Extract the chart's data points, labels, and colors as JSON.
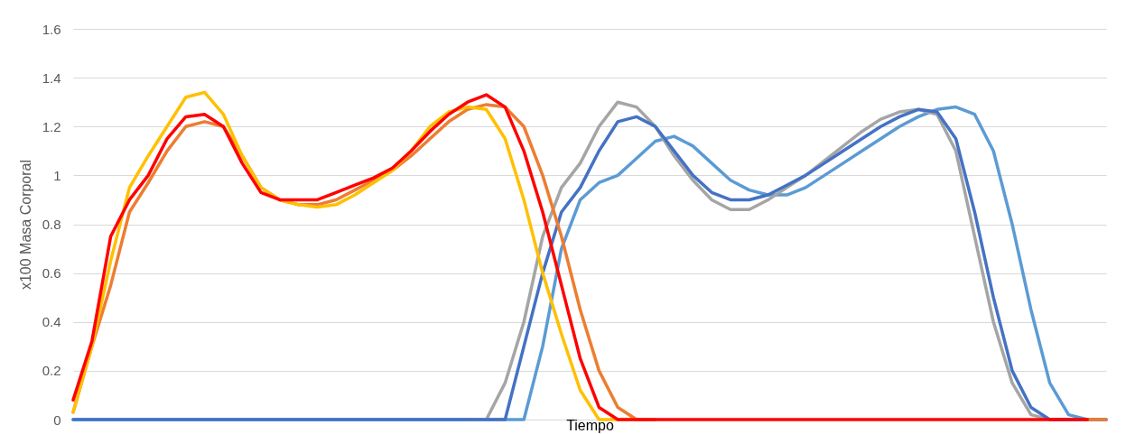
{
  "chart_data": {
    "type": "line",
    "xlabel": "Tiempo",
    "ylabel": "x100 Masa Corporal",
    "categories": [
      null,
      null,
      null,
      null,
      null,
      null,
      null,
      null,
      null,
      null,
      null,
      null,
      null,
      null,
      null,
      null,
      null,
      null,
      null,
      null,
      null,
      null,
      null,
      null,
      null,
      null,
      null,
      null,
      null,
      null,
      null,
      null,
      null,
      null,
      null,
      null,
      null,
      null,
      null,
      null,
      null,
      null,
      null,
      null,
      null,
      null,
      null,
      null,
      null,
      null,
      null,
      null,
      null,
      null,
      null,
      null
    ],
    "ylim": [
      0,
      1.6
    ],
    "yticks": [
      0,
      0.2,
      0.4,
      0.6,
      0.8,
      1,
      1.2,
      1.4,
      1.6
    ],
    "grid": "y",
    "tick_labels": "y",
    "marker": "none",
    "line_style": "solid",
    "series": [
      {
        "color": "#5b9bd5",
        "values": [
          0,
          0,
          0,
          0,
          0,
          0,
          0,
          0,
          0,
          0,
          0,
          0,
          0,
          0,
          0,
          0,
          0,
          0,
          0,
          0,
          0,
          0,
          0,
          0,
          0,
          0.3,
          0.7,
          0.9,
          0.97,
          1.0,
          1.07,
          1.14,
          1.16,
          1.12,
          1.05,
          0.98,
          0.94,
          0.92,
          0.92,
          0.95,
          1.0,
          1.05,
          1.1,
          1.15,
          1.2,
          1.24,
          1.27,
          1.28,
          1.25,
          1.1,
          0.8,
          0.45,
          0.15,
          0.02,
          0,
          0
        ]
      },
      {
        "color": "#a5a5a5",
        "values": [
          null,
          null,
          null,
          null,
          null,
          null,
          null,
          null,
          null,
          null,
          null,
          null,
          null,
          null,
          null,
          null,
          null,
          null,
          null,
          null,
          null,
          0,
          0,
          0.15,
          0.4,
          0.75,
          0.95,
          1.05,
          1.2,
          1.3,
          1.28,
          1.2,
          1.08,
          0.98,
          0.9,
          0.86,
          0.86,
          0.9,
          0.95,
          1.0,
          1.06,
          1.12,
          1.18,
          1.23,
          1.26,
          1.27,
          1.25,
          1.1,
          0.75,
          0.4,
          0.15,
          0.02,
          0,
          0,
          null,
          null
        ]
      },
      {
        "color": "#4472c4",
        "values": [
          0,
          0,
          0,
          0,
          0,
          0,
          0,
          0,
          0,
          0,
          0,
          0,
          0,
          0,
          0,
          0,
          0,
          0,
          0,
          0,
          0,
          0,
          0,
          0,
          0.3,
          0.6,
          0.85,
          0.95,
          1.1,
          1.22,
          1.24,
          1.2,
          1.1,
          1.0,
          0.93,
          0.9,
          0.9,
          0.92,
          0.96,
          1.0,
          1.05,
          1.1,
          1.15,
          1.2,
          1.24,
          1.27,
          1.26,
          1.15,
          0.85,
          0.5,
          0.2,
          0.05,
          0,
          0,
          0,
          0
        ]
      },
      {
        "color": "#ed7d31",
        "values": [
          0.03,
          0.3,
          0.55,
          0.85,
          0.97,
          1.1,
          1.2,
          1.22,
          1.2,
          1.08,
          0.95,
          0.9,
          0.88,
          0.88,
          0.9,
          0.94,
          0.98,
          1.02,
          1.08,
          1.15,
          1.22,
          1.27,
          1.29,
          1.28,
          1.2,
          1.0,
          0.75,
          0.45,
          0.2,
          0.05,
          0,
          0,
          null,
          null,
          null,
          null,
          null,
          null,
          null,
          null,
          null,
          null,
          null,
          null,
          null,
          null,
          null,
          null,
          null,
          null,
          null,
          null,
          null,
          null,
          0,
          0
        ]
      },
      {
        "color": "#ffc000",
        "values": [
          0.03,
          0.3,
          0.65,
          0.95,
          1.08,
          1.2,
          1.32,
          1.34,
          1.25,
          1.08,
          0.95,
          0.9,
          0.88,
          0.87,
          0.88,
          0.92,
          0.97,
          1.02,
          1.1,
          1.2,
          1.26,
          1.28,
          1.27,
          1.15,
          0.9,
          0.6,
          0.35,
          0.12,
          0,
          0,
          0,
          null,
          null,
          null,
          null,
          null,
          null,
          null,
          null,
          null,
          null,
          null,
          null,
          null,
          null,
          null,
          null,
          null,
          null,
          null,
          null,
          null,
          null,
          null,
          null,
          null
        ]
      },
      {
        "color": "#ff0000",
        "values": [
          0.08,
          0.32,
          0.75,
          0.9,
          1.0,
          1.15,
          1.24,
          1.25,
          1.2,
          1.05,
          0.93,
          0.9,
          0.9,
          0.9,
          0.93,
          0.96,
          0.99,
          1.03,
          1.1,
          1.18,
          1.25,
          1.3,
          1.33,
          1.28,
          1.1,
          0.85,
          0.55,
          0.25,
          0.05,
          0,
          0,
          0,
          0,
          0,
          0,
          0,
          0,
          0,
          0,
          0,
          0,
          0,
          0,
          0,
          0,
          0,
          0,
          0,
          0,
          0,
          0,
          0,
          0,
          0,
          0,
          null
        ]
      }
    ]
  }
}
